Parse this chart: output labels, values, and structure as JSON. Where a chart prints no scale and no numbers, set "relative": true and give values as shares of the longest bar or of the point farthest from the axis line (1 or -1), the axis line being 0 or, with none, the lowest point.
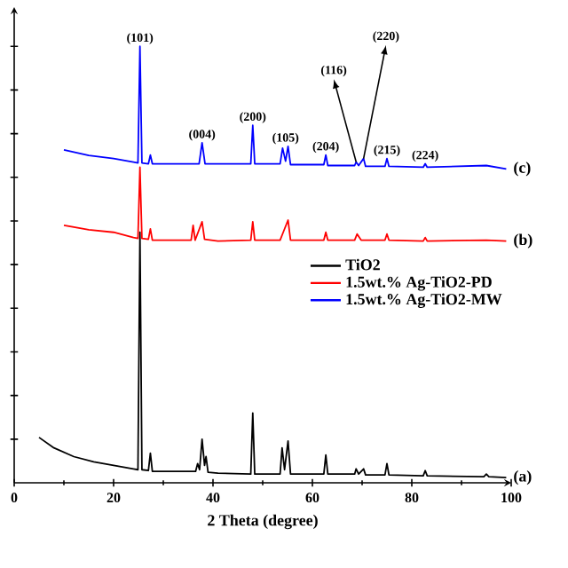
{
  "chart_data": {
    "type": "line",
    "relative": true,
    "xlabel": "2 Theta (degree)",
    "xlim": [
      0,
      100
    ],
    "xticks": [
      0,
      20,
      40,
      60,
      80,
      100
    ],
    "tick_labels": "x",
    "legend": "right",
    "grid": false,
    "marker": "none",
    "line_style": "solid",
    "series": [
      {
        "name": "TiO2",
        "color": "#000000",
        "x": [
          5,
          8,
          12,
          16,
          20,
          24,
          24.9,
          25.3,
          25.7,
          27.0,
          27.4,
          27.8,
          36.5,
          36.9,
          37.3,
          37.8,
          38.3,
          38.6,
          39.0,
          41,
          47.6,
          48.0,
          48.4,
          53.5,
          53.9,
          54.4,
          55.1,
          55.6,
          62.3,
          62.7,
          63.1,
          68.5,
          68.8,
          69.3,
          70.3,
          70.7,
          74.6,
          75.0,
          75.4,
          82.3,
          82.7,
          83.1,
          94.5,
          95,
          95.5,
          99
        ],
        "values": [
          0.104,
          0.08,
          0.06,
          0.048,
          0.04,
          0.032,
          0.03,
          0.574,
          0.03,
          0.028,
          0.068,
          0.026,
          0.026,
          0.044,
          0.03,
          0.1,
          0.04,
          0.06,
          0.024,
          0.022,
          0.02,
          0.16,
          0.02,
          0.02,
          0.08,
          0.03,
          0.096,
          0.02,
          0.02,
          0.064,
          0.02,
          0.02,
          0.032,
          0.02,
          0.032,
          0.018,
          0.018,
          0.044,
          0.018,
          0.016,
          0.028,
          0.016,
          0.014,
          0.02,
          0.014,
          0.012
        ]
      },
      {
        "name": "1.5wt.% Ag-TiO2-PD",
        "color": "#ff0000",
        "x": [
          10,
          15,
          20,
          24,
          24.9,
          25.3,
          25.7,
          27.0,
          27.4,
          27.8,
          35.6,
          36.0,
          36.4,
          37.8,
          38.3,
          41,
          47.6,
          48.0,
          48.4,
          53.5,
          54.2,
          55.1,
          55.6,
          62.3,
          62.7,
          63.1,
          68.5,
          69.0,
          69.8,
          74.6,
          75.0,
          75.4,
          82.3,
          82.7,
          83.1,
          95,
          99
        ],
        "values": [
          0.59,
          0.58,
          0.574,
          0.562,
          0.56,
          0.723,
          0.56,
          0.558,
          0.582,
          0.556,
          0.556,
          0.59,
          0.556,
          0.598,
          0.558,
          0.554,
          0.556,
          0.598,
          0.556,
          0.556,
          0.576,
          0.602,
          0.556,
          0.556,
          0.574,
          0.556,
          0.556,
          0.57,
          0.556,
          0.556,
          0.57,
          0.556,
          0.554,
          0.562,
          0.554,
          0.556,
          0.554
        ]
      },
      {
        "name": "1.5wt.% Ag-TiO2-MW",
        "color": "#0000ff",
        "x": [
          10,
          15,
          20,
          24,
          24.9,
          25.3,
          25.7,
          27.0,
          27.4,
          27.8,
          37.2,
          37.8,
          38.4,
          47.6,
          48.0,
          48.4,
          53.5,
          54.0,
          54.6,
          55.1,
          55.6,
          62.3,
          62.7,
          63.1,
          68.5,
          68.8,
          69.3,
          70.3,
          70.7,
          74.6,
          75.0,
          75.4,
          82.3,
          82.7,
          83.1,
          95,
          99
        ],
        "values": [
          0.763,
          0.75,
          0.743,
          0.735,
          0.733,
          1.0,
          0.733,
          0.731,
          0.751,
          0.731,
          0.731,
          0.779,
          0.731,
          0.731,
          0.819,
          0.731,
          0.731,
          0.767,
          0.737,
          0.771,
          0.729,
          0.729,
          0.751,
          0.727,
          0.727,
          0.735,
          0.727,
          0.743,
          0.725,
          0.725,
          0.743,
          0.725,
          0.723,
          0.731,
          0.723,
          0.727,
          0.719
        ]
      }
    ],
    "annotations": [
      {
        "text": "(101)",
        "x": 25.3,
        "y": 1.0
      },
      {
        "text": "(004)",
        "x": 37.8,
        "y": 0.779
      },
      {
        "text": "(200)",
        "x": 48.0,
        "y": 0.819
      },
      {
        "text": "(105)",
        "x": 54.6,
        "y": 0.771
      },
      {
        "text": "(204)",
        "x": 62.7,
        "y": 0.751
      },
      {
        "text": "(116)",
        "x": 68.8,
        "y": 0.735
      },
      {
        "text": "(220)",
        "x": 70.3,
        "y": 0.743
      },
      {
        "text": "(215)",
        "x": 75.0,
        "y": 0.743
      },
      {
        "text": "(224)",
        "x": 82.7,
        "y": 0.731
      },
      {
        "text": "(a)",
        "x": 99,
        "y": 0.012
      },
      {
        "text": "(b)",
        "x": 99,
        "y": 0.554
      },
      {
        "text": "(c)",
        "x": 99,
        "y": 0.719
      }
    ]
  }
}
